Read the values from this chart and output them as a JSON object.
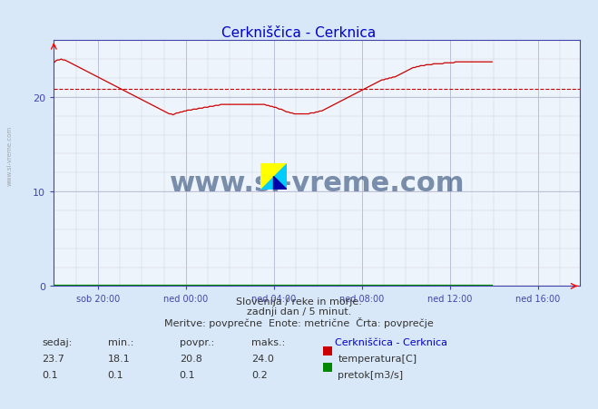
{
  "title": "Cerkniščica - Cerknica",
  "title_color": "#0000cc",
  "bg_color": "#d8e8f8",
  "plot_bg_color": "#eef4fb",
  "grid_color_major": "#aaaacc",
  "grid_color_minor": "#ccccdd",
  "xlabel_color": "#444444",
  "ylabel_color": "#4444aa",
  "tick_color": "#4444aa",
  "axis_color": "#4444aa",
  "watermark_text": "www.si-vreme.com",
  "watermark_color": "#1a3a6a",
  "footer_line1": "Slovenija / reke in morje.",
  "footer_line2": "zadnji dan / 5 minut.",
  "footer_line3": "Meritve: povprečne  Enote: metrične  Črta: povprečje",
  "footer_color": "#333333",
  "legend_title": "Cerkniščica - Cerknica",
  "legend_title_color": "#0000cc",
  "legend_entries": [
    "temperatura[C]",
    "pretok[m3/s]"
  ],
  "legend_colors": [
    "#cc0000",
    "#008800"
  ],
  "stats_labels": [
    "sedaj:",
    "min.:",
    "povpr.:",
    "maks.:"
  ],
  "stats_temp": [
    23.7,
    18.1,
    20.8,
    24.0
  ],
  "stats_flow": [
    0.1,
    0.1,
    0.1,
    0.2
  ],
  "xlim": [
    0,
    287
  ],
  "ylim": [
    0,
    26
  ],
  "yticks": [
    0,
    10,
    20
  ],
  "avg_line_value": 20.8,
  "avg_line_color": "#cc0000",
  "xtick_positions": [
    24,
    72,
    120,
    168,
    216,
    264
  ],
  "xtick_labels": [
    "sob 20:00",
    "ned 00:00",
    "ned 04:00",
    "ned 08:00",
    "ned 12:00",
    "ned 16:00"
  ],
  "temp_data": [
    23.6,
    23.8,
    23.9,
    23.9,
    24.0,
    23.9,
    23.9,
    23.8,
    23.7,
    23.6,
    23.5,
    23.4,
    23.3,
    23.2,
    23.1,
    23.0,
    22.9,
    22.8,
    22.7,
    22.6,
    22.5,
    22.4,
    22.3,
    22.2,
    22.1,
    22.0,
    21.9,
    21.8,
    21.7,
    21.6,
    21.5,
    21.4,
    21.3,
    21.2,
    21.1,
    21.0,
    20.9,
    20.8,
    20.7,
    20.6,
    20.5,
    20.4,
    20.3,
    20.2,
    20.1,
    20.0,
    19.9,
    19.8,
    19.7,
    19.6,
    19.5,
    19.4,
    19.3,
    19.2,
    19.1,
    19.0,
    18.9,
    18.8,
    18.7,
    18.6,
    18.5,
    18.4,
    18.3,
    18.2,
    18.2,
    18.1,
    18.2,
    18.3,
    18.3,
    18.4,
    18.4,
    18.5,
    18.5,
    18.6,
    18.6,
    18.6,
    18.7,
    18.7,
    18.7,
    18.8,
    18.8,
    18.8,
    18.9,
    18.9,
    18.9,
    19.0,
    19.0,
    19.0,
    19.1,
    19.1,
    19.1,
    19.2,
    19.2,
    19.2,
    19.2,
    19.2,
    19.2,
    19.2,
    19.2,
    19.2,
    19.2,
    19.2,
    19.2,
    19.2,
    19.2,
    19.2,
    19.2,
    19.2,
    19.2,
    19.2,
    19.2,
    19.2,
    19.2,
    19.2,
    19.2,
    19.2,
    19.1,
    19.1,
    19.0,
    19.0,
    18.9,
    18.9,
    18.8,
    18.7,
    18.7,
    18.6,
    18.5,
    18.4,
    18.4,
    18.3,
    18.3,
    18.2,
    18.2,
    18.2,
    18.2,
    18.2,
    18.2,
    18.2,
    18.2,
    18.2,
    18.3,
    18.3,
    18.3,
    18.4,
    18.4,
    18.5,
    18.5,
    18.6,
    18.7,
    18.8,
    18.9,
    19.0,
    19.1,
    19.2,
    19.3,
    19.4,
    19.5,
    19.6,
    19.7,
    19.8,
    19.9,
    20.0,
    20.1,
    20.2,
    20.3,
    20.4,
    20.5,
    20.6,
    20.7,
    20.8,
    20.9,
    21.0,
    21.1,
    21.2,
    21.3,
    21.4,
    21.5,
    21.6,
    21.7,
    21.8,
    21.8,
    21.9,
    21.9,
    22.0,
    22.0,
    22.1,
    22.1,
    22.2,
    22.3,
    22.4,
    22.5,
    22.6,
    22.7,
    22.8,
    22.9,
    23.0,
    23.1,
    23.1,
    23.2,
    23.2,
    23.3,
    23.3,
    23.3,
    23.4,
    23.4,
    23.4,
    23.4,
    23.5,
    23.5,
    23.5,
    23.5,
    23.5,
    23.5,
    23.6,
    23.6,
    23.6,
    23.6,
    23.6,
    23.6,
    23.7,
    23.7,
    23.7,
    23.7,
    23.7,
    23.7,
    23.7,
    23.7,
    23.7,
    23.7,
    23.7,
    23.7,
    23.7,
    23.7,
    23.7,
    23.7,
    23.7,
    23.7,
    23.7,
    23.7,
    23.7
  ],
  "flow_data_val": 0.1,
  "temp_color": "#cc0000",
  "flow_color": "#008800",
  "side_watermark": "www.si-vreme.com"
}
